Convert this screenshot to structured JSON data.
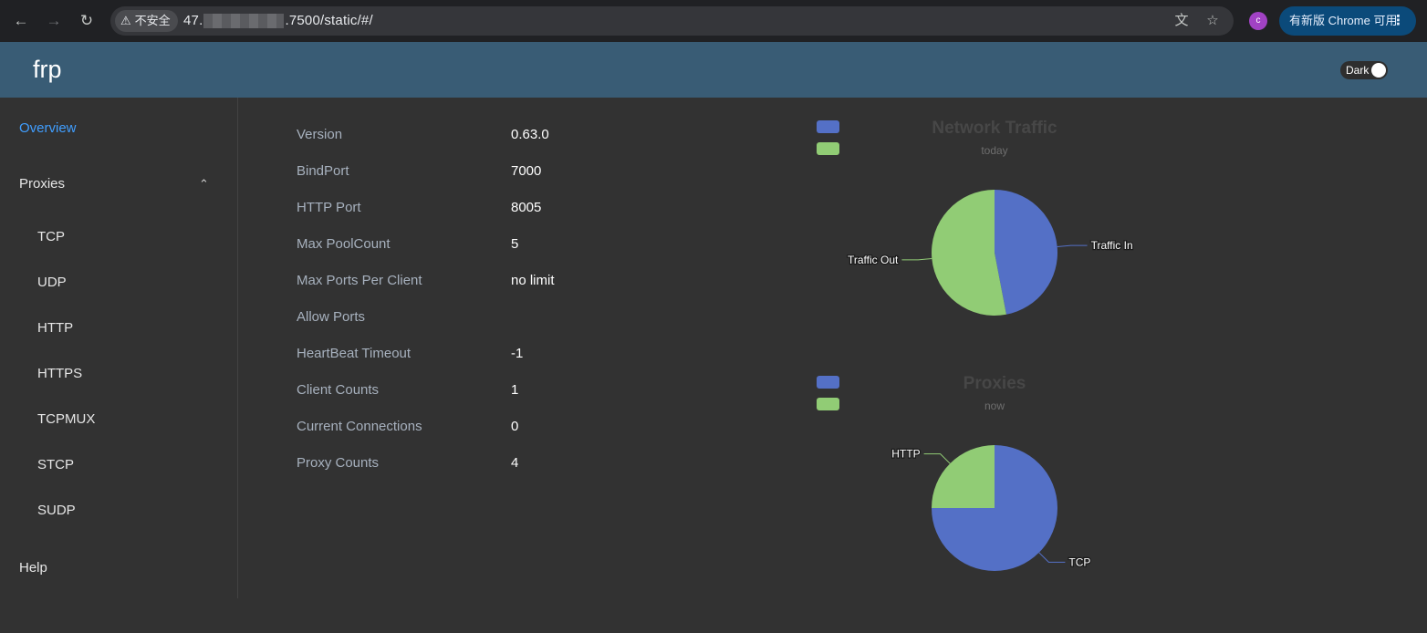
{
  "browser": {
    "security_label": "不安全",
    "url_prefix": "47.",
    "url_suffix": ".7500/static/#/",
    "profile_initial": "c",
    "update_label": "有新版 Chrome 可用"
  },
  "header": {
    "title": "frp",
    "dark_label": "Dark"
  },
  "sidebar": {
    "overview": "Overview",
    "proxies": "Proxies",
    "proxy_types": [
      "TCP",
      "UDP",
      "HTTP",
      "HTTPS",
      "TCPMUX",
      "STCP",
      "SUDP"
    ],
    "help": "Help"
  },
  "info": [
    {
      "label": "Version",
      "value": "0.63.0"
    },
    {
      "label": "BindPort",
      "value": "7000"
    },
    {
      "label": "HTTP Port",
      "value": "8005"
    },
    {
      "label": "Max PoolCount",
      "value": "5"
    },
    {
      "label": "Max Ports Per Client",
      "value": "no limit"
    },
    {
      "label": "Allow Ports",
      "value": ""
    },
    {
      "label": "HeartBeat Timeout",
      "value": "-1"
    },
    {
      "label": "Client Counts",
      "value": "1"
    },
    {
      "label": "Current Connections",
      "value": "0"
    },
    {
      "label": "Proxy Counts",
      "value": "4"
    }
  ],
  "chart_data": [
    {
      "type": "pie",
      "title": "Network Traffic",
      "subtitle": "today",
      "categories": [
        "Traffic In",
        "Traffic Out"
      ],
      "values": [
        47,
        53
      ],
      "colors": [
        "#5470c6",
        "#91cc75"
      ],
      "legend_placement": "top-left"
    },
    {
      "type": "pie",
      "title": "Proxies",
      "subtitle": "now",
      "categories": [
        "TCP",
        "HTTP"
      ],
      "values": [
        3,
        1
      ],
      "colors": [
        "#5470c6",
        "#91cc75"
      ],
      "legend_placement": "top-left"
    }
  ]
}
